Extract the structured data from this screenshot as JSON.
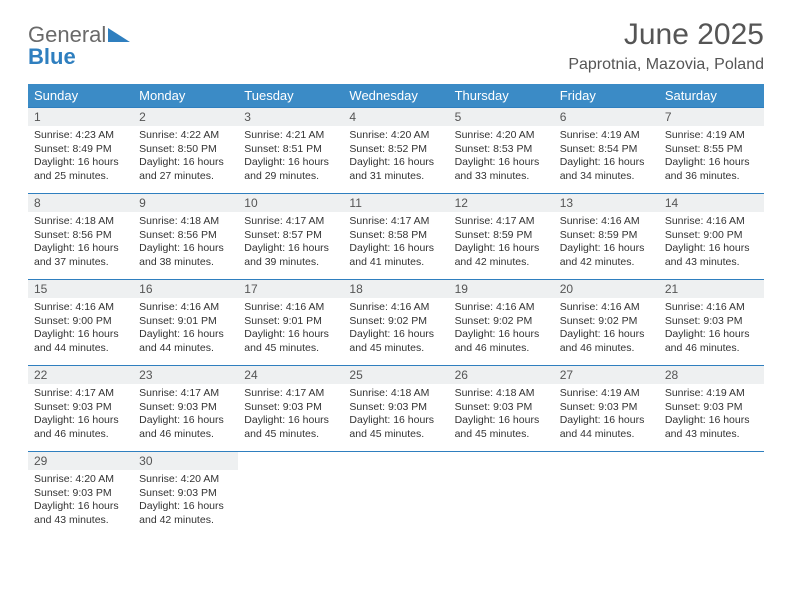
{
  "brand": {
    "part1": "General",
    "part2": "Blue"
  },
  "title": "June 2025",
  "location": "Paprotnia, Mazovia, Poland",
  "colors": {
    "header_bg": "#3b8bc6",
    "border": "#2f7fbf",
    "daynum_bg": "#eef0f1",
    "text": "#333333",
    "muted": "#555555"
  },
  "weekdays": [
    "Sunday",
    "Monday",
    "Tuesday",
    "Wednesday",
    "Thursday",
    "Friday",
    "Saturday"
  ],
  "weeks": [
    [
      {
        "n": "1",
        "sunrise": "Sunrise: 4:23 AM",
        "sunset": "Sunset: 8:49 PM",
        "day1": "Daylight: 16 hours",
        "day2": "and 25 minutes."
      },
      {
        "n": "2",
        "sunrise": "Sunrise: 4:22 AM",
        "sunset": "Sunset: 8:50 PM",
        "day1": "Daylight: 16 hours",
        "day2": "and 27 minutes."
      },
      {
        "n": "3",
        "sunrise": "Sunrise: 4:21 AM",
        "sunset": "Sunset: 8:51 PM",
        "day1": "Daylight: 16 hours",
        "day2": "and 29 minutes."
      },
      {
        "n": "4",
        "sunrise": "Sunrise: 4:20 AM",
        "sunset": "Sunset: 8:52 PM",
        "day1": "Daylight: 16 hours",
        "day2": "and 31 minutes."
      },
      {
        "n": "5",
        "sunrise": "Sunrise: 4:20 AM",
        "sunset": "Sunset: 8:53 PM",
        "day1": "Daylight: 16 hours",
        "day2": "and 33 minutes."
      },
      {
        "n": "6",
        "sunrise": "Sunrise: 4:19 AM",
        "sunset": "Sunset: 8:54 PM",
        "day1": "Daylight: 16 hours",
        "day2": "and 34 minutes."
      },
      {
        "n": "7",
        "sunrise": "Sunrise: 4:19 AM",
        "sunset": "Sunset: 8:55 PM",
        "day1": "Daylight: 16 hours",
        "day2": "and 36 minutes."
      }
    ],
    [
      {
        "n": "8",
        "sunrise": "Sunrise: 4:18 AM",
        "sunset": "Sunset: 8:56 PM",
        "day1": "Daylight: 16 hours",
        "day2": "and 37 minutes."
      },
      {
        "n": "9",
        "sunrise": "Sunrise: 4:18 AM",
        "sunset": "Sunset: 8:56 PM",
        "day1": "Daylight: 16 hours",
        "day2": "and 38 minutes."
      },
      {
        "n": "10",
        "sunrise": "Sunrise: 4:17 AM",
        "sunset": "Sunset: 8:57 PM",
        "day1": "Daylight: 16 hours",
        "day2": "and 39 minutes."
      },
      {
        "n": "11",
        "sunrise": "Sunrise: 4:17 AM",
        "sunset": "Sunset: 8:58 PM",
        "day1": "Daylight: 16 hours",
        "day2": "and 41 minutes."
      },
      {
        "n": "12",
        "sunrise": "Sunrise: 4:17 AM",
        "sunset": "Sunset: 8:59 PM",
        "day1": "Daylight: 16 hours",
        "day2": "and 42 minutes."
      },
      {
        "n": "13",
        "sunrise": "Sunrise: 4:16 AM",
        "sunset": "Sunset: 8:59 PM",
        "day1": "Daylight: 16 hours",
        "day2": "and 42 minutes."
      },
      {
        "n": "14",
        "sunrise": "Sunrise: 4:16 AM",
        "sunset": "Sunset: 9:00 PM",
        "day1": "Daylight: 16 hours",
        "day2": "and 43 minutes."
      }
    ],
    [
      {
        "n": "15",
        "sunrise": "Sunrise: 4:16 AM",
        "sunset": "Sunset: 9:00 PM",
        "day1": "Daylight: 16 hours",
        "day2": "and 44 minutes."
      },
      {
        "n": "16",
        "sunrise": "Sunrise: 4:16 AM",
        "sunset": "Sunset: 9:01 PM",
        "day1": "Daylight: 16 hours",
        "day2": "and 44 minutes."
      },
      {
        "n": "17",
        "sunrise": "Sunrise: 4:16 AM",
        "sunset": "Sunset: 9:01 PM",
        "day1": "Daylight: 16 hours",
        "day2": "and 45 minutes."
      },
      {
        "n": "18",
        "sunrise": "Sunrise: 4:16 AM",
        "sunset": "Sunset: 9:02 PM",
        "day1": "Daylight: 16 hours",
        "day2": "and 45 minutes."
      },
      {
        "n": "19",
        "sunrise": "Sunrise: 4:16 AM",
        "sunset": "Sunset: 9:02 PM",
        "day1": "Daylight: 16 hours",
        "day2": "and 46 minutes."
      },
      {
        "n": "20",
        "sunrise": "Sunrise: 4:16 AM",
        "sunset": "Sunset: 9:02 PM",
        "day1": "Daylight: 16 hours",
        "day2": "and 46 minutes."
      },
      {
        "n": "21",
        "sunrise": "Sunrise: 4:16 AM",
        "sunset": "Sunset: 9:03 PM",
        "day1": "Daylight: 16 hours",
        "day2": "and 46 minutes."
      }
    ],
    [
      {
        "n": "22",
        "sunrise": "Sunrise: 4:17 AM",
        "sunset": "Sunset: 9:03 PM",
        "day1": "Daylight: 16 hours",
        "day2": "and 46 minutes."
      },
      {
        "n": "23",
        "sunrise": "Sunrise: 4:17 AM",
        "sunset": "Sunset: 9:03 PM",
        "day1": "Daylight: 16 hours",
        "day2": "and 46 minutes."
      },
      {
        "n": "24",
        "sunrise": "Sunrise: 4:17 AM",
        "sunset": "Sunset: 9:03 PM",
        "day1": "Daylight: 16 hours",
        "day2": "and 45 minutes."
      },
      {
        "n": "25",
        "sunrise": "Sunrise: 4:18 AM",
        "sunset": "Sunset: 9:03 PM",
        "day1": "Daylight: 16 hours",
        "day2": "and 45 minutes."
      },
      {
        "n": "26",
        "sunrise": "Sunrise: 4:18 AM",
        "sunset": "Sunset: 9:03 PM",
        "day1": "Daylight: 16 hours",
        "day2": "and 45 minutes."
      },
      {
        "n": "27",
        "sunrise": "Sunrise: 4:19 AM",
        "sunset": "Sunset: 9:03 PM",
        "day1": "Daylight: 16 hours",
        "day2": "and 44 minutes."
      },
      {
        "n": "28",
        "sunrise": "Sunrise: 4:19 AM",
        "sunset": "Sunset: 9:03 PM",
        "day1": "Daylight: 16 hours",
        "day2": "and 43 minutes."
      }
    ],
    [
      {
        "n": "29",
        "sunrise": "Sunrise: 4:20 AM",
        "sunset": "Sunset: 9:03 PM",
        "day1": "Daylight: 16 hours",
        "day2": "and 43 minutes."
      },
      {
        "n": "30",
        "sunrise": "Sunrise: 4:20 AM",
        "sunset": "Sunset: 9:03 PM",
        "day1": "Daylight: 16 hours",
        "day2": "and 42 minutes."
      },
      null,
      null,
      null,
      null,
      null
    ]
  ]
}
